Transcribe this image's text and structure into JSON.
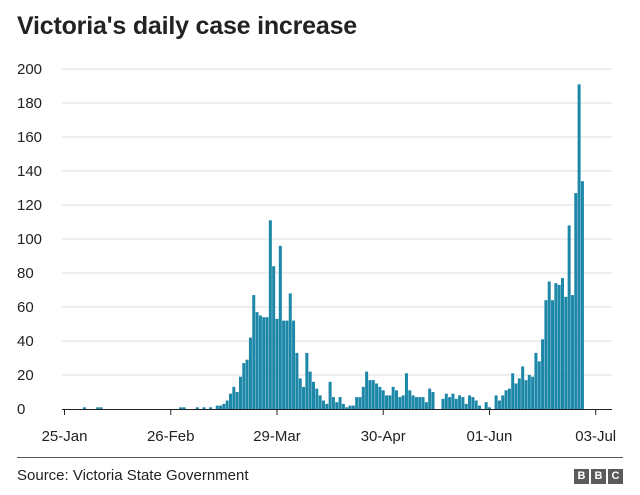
{
  "title": "Victoria's daily case increase",
  "source": "Source: Victoria State Government",
  "logo_letters": [
    "B",
    "B",
    "C"
  ],
  "colors": {
    "bar": "#1d87a8",
    "axis": "#222222",
    "grid": "#dddddd",
    "text": "#222222",
    "logo": "#5a5a5a"
  },
  "chart_data": {
    "type": "bar",
    "title": "Victoria's daily case increase",
    "xlabel": "",
    "ylabel": "",
    "ylim": [
      0,
      200
    ],
    "yticks": [
      0,
      20,
      40,
      60,
      80,
      100,
      120,
      140,
      160,
      180,
      200
    ],
    "grid": true,
    "x_tick_labels": [
      {
        "label": "25-Jan",
        "index": 0
      },
      {
        "label": "26-Feb",
        "index": 32
      },
      {
        "label": "29-Mar",
        "index": 64
      },
      {
        "label": "30-Apr",
        "index": 96
      },
      {
        "label": "01-Jun",
        "index": 128
      },
      {
        "label": "03-Jul",
        "index": 160
      }
    ],
    "start_date": "25-Jan",
    "values": [
      0,
      0,
      0,
      0,
      0,
      0,
      1,
      0,
      0,
      0,
      1,
      1,
      0,
      0,
      0,
      0,
      0,
      0,
      0,
      0,
      0,
      0,
      0,
      0,
      0,
      0,
      0,
      0,
      0,
      0,
      0,
      0,
      0,
      0,
      0,
      1,
      1,
      0,
      0,
      0,
      1,
      0,
      1,
      0,
      1,
      0,
      2,
      2,
      3,
      5,
      9,
      13,
      10,
      19,
      27,
      29,
      42,
      67,
      57,
      55,
      54,
      54,
      111,
      84,
      53,
      96,
      52,
      52,
      68,
      52,
      33,
      18,
      13,
      33,
      22,
      16,
      12,
      8,
      5,
      3,
      16,
      7,
      4,
      7,
      3,
      1,
      2,
      2,
      7,
      7,
      13,
      22,
      17,
      17,
      15,
      13,
      11,
      8,
      8,
      13,
      11,
      7,
      8,
      21,
      11,
      8,
      7,
      7,
      7,
      4,
      12,
      10,
      0,
      0,
      6,
      9,
      7,
      9,
      6,
      8,
      7,
      3,
      8,
      7,
      5,
      2,
      0,
      4,
      1,
      0,
      8,
      5,
      8,
      11,
      12,
      21,
      15,
      18,
      25,
      17,
      20,
      19,
      33,
      28,
      41,
      64,
      75,
      64,
      74,
      73,
      77,
      66,
      108,
      67,
      127,
      191,
      134
    ]
  }
}
